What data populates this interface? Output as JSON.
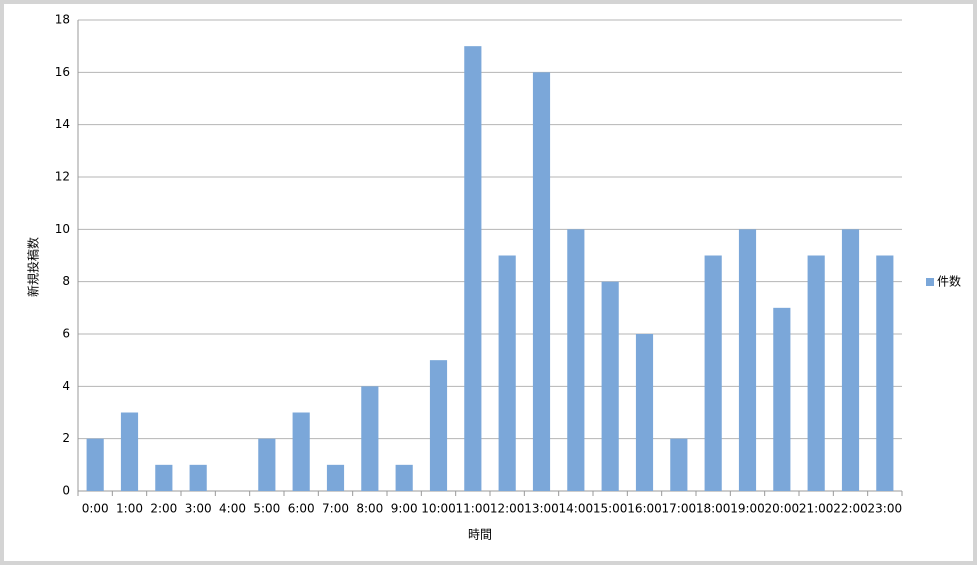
{
  "chart_data": {
    "type": "bar",
    "x_label": "時間",
    "y_label": "新規投稿数",
    "categories": [
      "0:00",
      "1:00",
      "2:00",
      "3:00",
      "4:00",
      "5:00",
      "6:00",
      "7:00",
      "8:00",
      "9:00",
      "10:00",
      "11:00",
      "12:00",
      "13:00",
      "14:00",
      "15:00",
      "16:00",
      "17:00",
      "18:00",
      "19:00",
      "20:00",
      "21:00",
      "22:00",
      "23:00"
    ],
    "series": [
      {
        "name": "件数",
        "color": "#7ba7d9",
        "values": [
          2,
          3,
          1,
          1,
          0,
          2,
          3,
          1,
          4,
          1,
          5,
          17,
          9,
          16,
          10,
          8,
          6,
          2,
          9,
          10,
          7,
          9,
          10,
          9
        ]
      }
    ],
    "ylim": [
      0,
      18
    ],
    "yticks": [
      0,
      2,
      4,
      6,
      8,
      10,
      12,
      14,
      16,
      18
    ],
    "grid": true,
    "legend": "right"
  }
}
